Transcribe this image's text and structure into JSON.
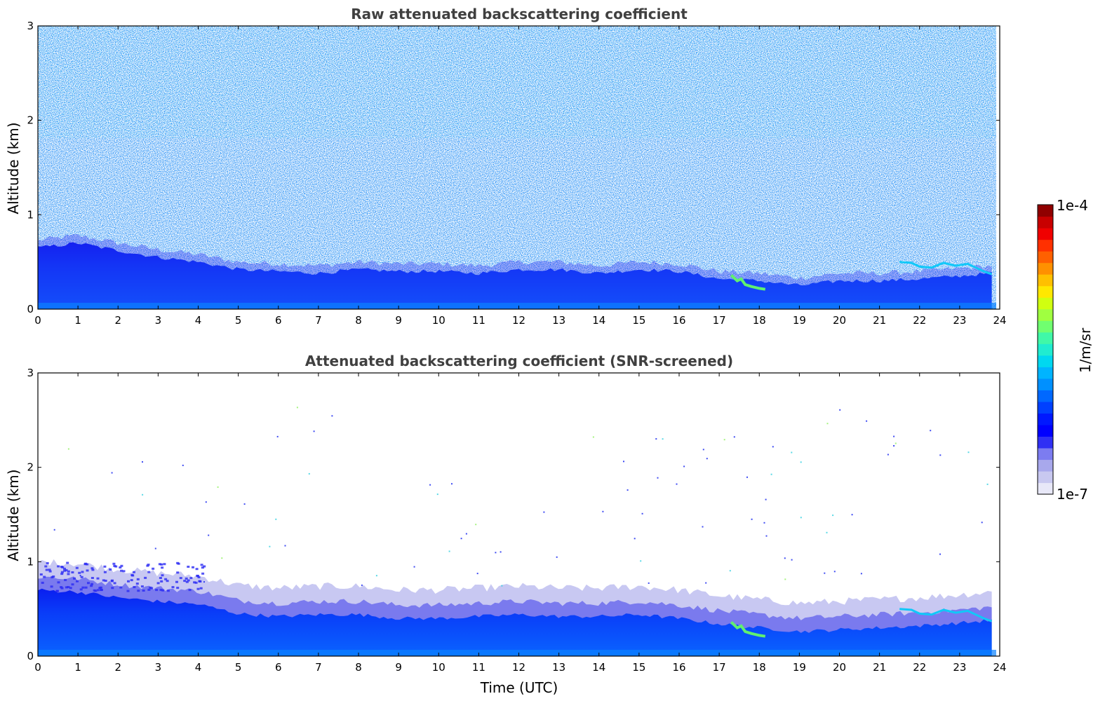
{
  "chart_data": [
    {
      "type": "heatmap",
      "title": "Raw attenuated backscattering coefficient",
      "xlabel": "",
      "ylabel": "Altitude (km)",
      "xlim": [
        0,
        24
      ],
      "ylim": [
        0,
        3
      ],
      "x_ticks": [
        "0",
        "1",
        "2",
        "3",
        "4",
        "5",
        "6",
        "7",
        "8",
        "9",
        "10",
        "11",
        "12",
        "13",
        "14",
        "15",
        "16",
        "17",
        "18",
        "19",
        "20",
        "21",
        "22",
        "23",
        "24"
      ],
      "y_ticks": [
        "0",
        "1",
        "2",
        "3"
      ],
      "description": "noise field above boundary layer",
      "boundary_layer_top_km": {
        "x": [
          0,
          1,
          2,
          3,
          4,
          5,
          6,
          7,
          8,
          9,
          10,
          11,
          12,
          13,
          14,
          15,
          16,
          17,
          18,
          19,
          20,
          21,
          22,
          23,
          23.8
        ],
        "y": [
          0.65,
          0.7,
          0.62,
          0.55,
          0.5,
          0.42,
          0.4,
          0.38,
          0.42,
          0.4,
          0.4,
          0.38,
          0.42,
          0.42,
          0.38,
          0.42,
          0.4,
          0.32,
          0.3,
          0.25,
          0.3,
          0.3,
          0.32,
          0.35,
          0.38
        ]
      }
    },
    {
      "type": "heatmap",
      "title": "Attenuated backscattering coefficient (SNR-screened)",
      "xlabel": "Time (UTC)",
      "ylabel": "Altitude (km)",
      "xlim": [
        0,
        24
      ],
      "ylim": [
        0,
        3
      ],
      "x_ticks": [
        "0",
        "1",
        "2",
        "3",
        "4",
        "5",
        "6",
        "7",
        "8",
        "9",
        "10",
        "11",
        "12",
        "13",
        "14",
        "15",
        "16",
        "17",
        "18",
        "19",
        "20",
        "21",
        "22",
        "23",
        "24"
      ],
      "y_ticks": [
        "0",
        "1",
        "2",
        "3"
      ],
      "boundary_layer_top_km": {
        "x": [
          0,
          1,
          2,
          3,
          4,
          5,
          6,
          7,
          8,
          9,
          10,
          11,
          12,
          13,
          14,
          15,
          16,
          17,
          18,
          19,
          20,
          21,
          22,
          23,
          23.8
        ],
        "y": [
          0.7,
          0.68,
          0.62,
          0.58,
          0.55,
          0.45,
          0.42,
          0.44,
          0.44,
          0.4,
          0.4,
          0.42,
          0.44,
          0.42,
          0.42,
          0.44,
          0.4,
          0.34,
          0.3,
          0.26,
          0.28,
          0.3,
          0.32,
          0.35,
          0.38
        ]
      }
    }
  ],
  "colorbar": {
    "label": "1/m/sr",
    "max_label": "1e-4",
    "min_label": "1e-7",
    "scale": "log",
    "colors": [
      "#e8e8f8",
      "#c8c8f0",
      "#a8a8ec",
      "#7c7cf0",
      "#3030f4",
      "#0000ff",
      "#0018ff",
      "#0040ff",
      "#0068ff",
      "#0090ff",
      "#00b4ff",
      "#00d8f0",
      "#20ecd0",
      "#40f8a8",
      "#70ff70",
      "#a0ff40",
      "#d0ff10",
      "#ffe800",
      "#ffc000",
      "#ff9000",
      "#ff6000",
      "#ff3000",
      "#f00000",
      "#c80000",
      "#900000"
    ]
  }
}
